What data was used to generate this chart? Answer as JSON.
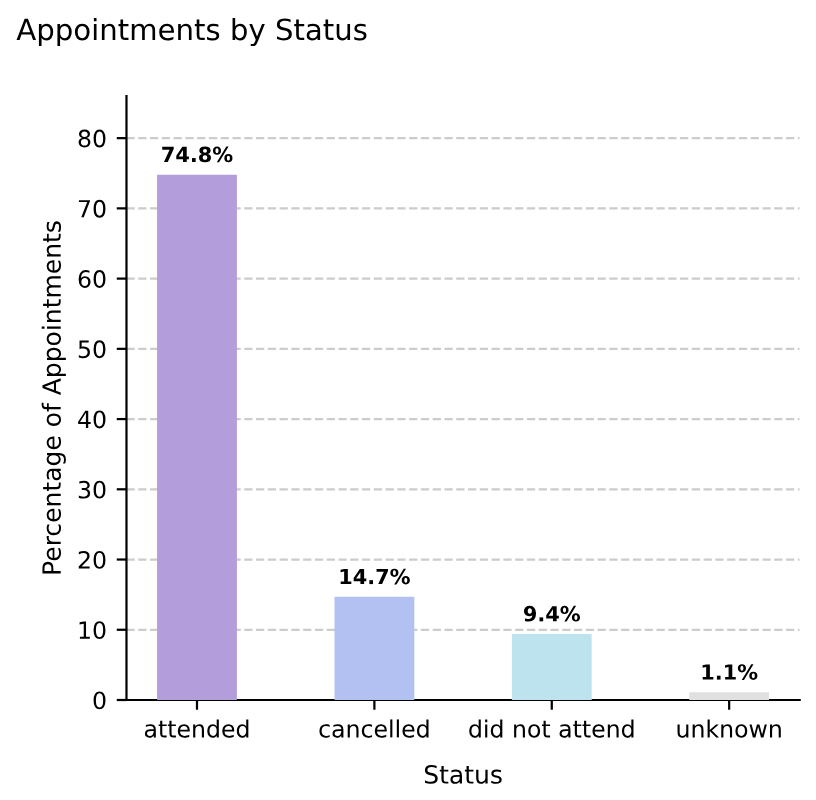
{
  "chart_data": {
    "type": "bar",
    "title": "Appointments by Status",
    "xlabel": "Status",
    "ylabel": "Percentage of Appointments",
    "categories": [
      "attended",
      "cancelled",
      "did not attend",
      "unknown"
    ],
    "values": [
      74.8,
      14.7,
      9.4,
      1.1
    ],
    "value_labels": [
      "74.8%",
      "14.7%",
      "9.4%",
      "1.1%"
    ],
    "colors": [
      "#b39ddb",
      "#b3c1f2",
      "#bde3ef",
      "#e0e0e0"
    ],
    "ylim": [
      0,
      86
    ],
    "yticks": [
      0,
      10,
      20,
      30,
      40,
      50,
      60,
      70,
      80
    ],
    "grid": "y"
  }
}
